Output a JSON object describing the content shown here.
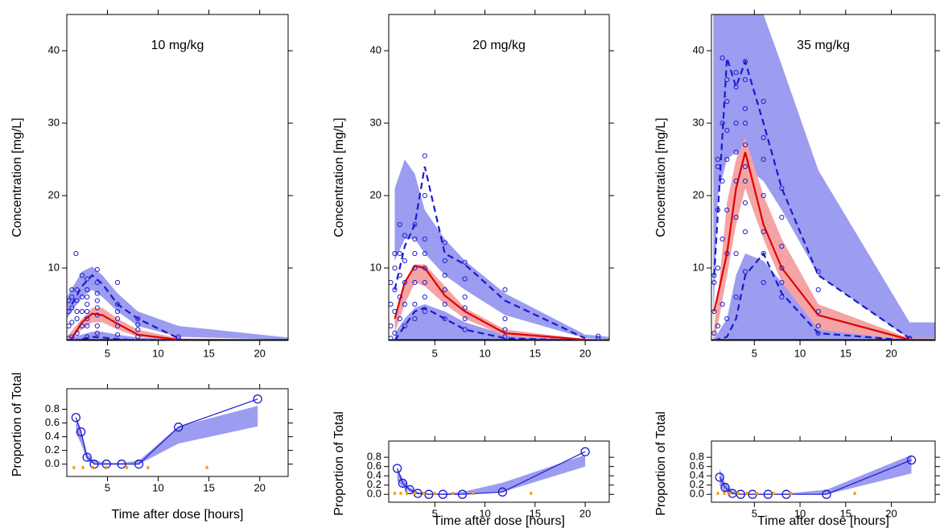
{
  "chart_data": [
    {
      "type": "vpc",
      "title": "10 mg/kg",
      "ylabel": "Concentration [mg/L]",
      "xlim": [
        1,
        22.8
      ],
      "xticks": [
        5,
        10,
        15,
        20
      ],
      "ylim": [
        0,
        45
      ],
      "yticks": [
        10,
        20,
        30,
        40
      ],
      "observed": {
        "color": "#2222cc",
        "x": [
          1.2,
          1.2,
          1.2,
          1.2,
          1.5,
          1.5,
          1.5,
          1.5,
          1.5,
          1.9,
          2,
          2,
          2,
          2,
          2,
          2.5,
          2.5,
          2.5,
          2.5,
          3,
          3,
          3,
          3,
          3,
          3,
          3,
          3,
          4,
          4,
          4,
          4,
          4,
          4,
          4,
          4,
          6,
          6,
          6,
          6,
          6,
          6,
          8,
          8,
          8,
          8,
          12,
          12
        ],
        "y": [
          0.3,
          2,
          4,
          5.5,
          0.5,
          2.5,
          4.5,
          6,
          7,
          12,
          1,
          3,
          4,
          5.5,
          7,
          2,
          4,
          6,
          9,
          0.5,
          2,
          3,
          4,
          5,
          6,
          7,
          8.5,
          1,
          2,
          3.5,
          4.5,
          5.5,
          6.5,
          8,
          9.8,
          0.8,
          2,
          3,
          4,
          5,
          8,
          0.5,
          1.5,
          2.2,
          3,
          0.2,
          0.5
        ]
      },
      "bands": [
        {
          "color": "#9c9cf0",
          "x": [
            1,
            2.5,
            3.5,
            4.5,
            6,
            8,
            12,
            22.8
          ],
          "lo": [
            3,
            6,
            7,
            6,
            4,
            2,
            0.5,
            0.1
          ],
          "hi": [
            6,
            9.5,
            10.2,
            9,
            6.5,
            4,
            2,
            0.4
          ]
        },
        {
          "color": "#9c9cf0",
          "x": [
            1,
            2.5,
            3.5,
            4.5,
            6,
            8,
            12,
            22.8
          ],
          "lo": [
            0,
            0,
            0,
            0,
            0,
            0,
            0,
            0
          ],
          "hi": [
            0.3,
            0.8,
            1.2,
            1.2,
            0.8,
            0.4,
            0.2,
            0.1
          ]
        },
        {
          "color": "#f4a4a4",
          "x": [
            1,
            2.5,
            3.5,
            4.5,
            6,
            8,
            12,
            22.8
          ],
          "lo": [
            0,
            1.5,
            2.5,
            2.5,
            1.5,
            0.5,
            0,
            0
          ],
          "hi": [
            0.5,
            3,
            4.5,
            4.5,
            3,
            1.5,
            0.3,
            0.1
          ]
        }
      ],
      "lines": [
        {
          "color": "#1a1acc",
          "style": "dashed",
          "x": [
            1.5,
            2.5,
            3.5,
            4.5,
            6,
            8,
            12
          ],
          "y": [
            5,
            7.5,
            9,
            7.8,
            5,
            3,
            0.3
          ]
        },
        {
          "color": "#1a1acc",
          "style": "dashed",
          "x": [
            1.5,
            2.5,
            3.5,
            4.5,
            6,
            8,
            12
          ],
          "y": [
            0,
            0.2,
            0.5,
            0.4,
            0.2,
            0,
            0
          ]
        },
        {
          "color": "#e00000",
          "style": "solid",
          "x": [
            1.5,
            2.5,
            3.5,
            4.5,
            6,
            8,
            12
          ],
          "y": [
            0.3,
            2.5,
            3.7,
            3.5,
            2.3,
            0.8,
            0.1
          ]
        }
      ],
      "bottom": {
        "ylabel": "Proportion of Total",
        "xlabel": "Time after dose [hours]",
        "ylim": [
          -0.18,
          1.1
        ],
        "yticks": [
          {
            "value": 0,
            "label": "0.0"
          },
          0.2,
          0.4,
          0.6,
          0.8
        ],
        "color": "#1a1acc",
        "x": [
          1.9,
          2.4,
          3,
          3.7,
          4.9,
          6.4,
          8.1,
          12,
          19.8
        ],
        "values": [
          0.68,
          0.47,
          0.1,
          0,
          0,
          0,
          0,
          0.54,
          0.95
        ],
        "band": {
          "color": "#9c9cf0",
          "lo": [
            0.45,
            0.3,
            0.05,
            0,
            0,
            0,
            0,
            0.3,
            0.55
          ],
          "hi": [
            0.7,
            0.5,
            0.15,
            0.05,
            0.02,
            0.02,
            0.05,
            0.55,
            0.85
          ]
        },
        "rug": {
          "color": "#f0a020",
          "x": [
            1.7,
            2.6,
            3.6,
            4.9,
            6.9,
            9,
            14.8
          ]
        }
      }
    },
    {
      "type": "vpc",
      "title": "20 mg/kg",
      "ylabel": "Concentration [mg/L]",
      "xlim": [
        0.4,
        22.4
      ],
      "xticks": [
        5,
        10,
        15,
        20
      ],
      "ylim": [
        0,
        45
      ],
      "yticks": [
        10,
        20,
        30,
        40
      ],
      "observed": {
        "color": "#2222cc",
        "x": [
          0.6,
          0.6,
          0.6,
          0.6,
          1,
          1,
          1,
          1,
          1,
          1.5,
          1.5,
          1.5,
          1.5,
          1.5,
          2,
          2,
          2,
          2,
          2,
          3,
          3,
          3,
          3,
          3,
          3,
          3,
          4,
          4,
          4,
          4,
          4,
          4,
          4,
          4,
          6,
          6,
          6,
          6,
          6,
          6,
          8,
          8,
          8,
          8,
          8,
          8,
          12,
          12,
          12,
          12,
          21.3,
          21.3
        ],
        "y": [
          0.3,
          2,
          5,
          8,
          1,
          4,
          7,
          10,
          12,
          3,
          6,
          9,
          12,
          16,
          2,
          5,
          8,
          11,
          14.5,
          3,
          5,
          8,
          10,
          12,
          14,
          16,
          4,
          6,
          8,
          10,
          12,
          14,
          20,
          25.5,
          3,
          5,
          7,
          9,
          11,
          13.5,
          1.5,
          3,
          4.5,
          6,
          8.5,
          10.8,
          0.5,
          1.5,
          3,
          7,
          0.3,
          0.6
        ]
      },
      "bands": [
        {
          "color": "#9c9cf0",
          "x": [
            1,
            2,
            3,
            4,
            6,
            8,
            12,
            20,
            22.4
          ],
          "lo": [
            11,
            14,
            14,
            12,
            9,
            7,
            3.5,
            0.3,
            0.2
          ],
          "hi": [
            21,
            25,
            23,
            18,
            14,
            11,
            6.5,
            0.8,
            0.5
          ]
        },
        {
          "color": "#9c9cf0",
          "x": [
            1,
            2,
            3,
            4,
            6,
            8,
            12,
            20,
            22.4
          ],
          "lo": [
            0,
            0,
            0,
            0,
            0,
            0,
            0,
            0,
            0
          ],
          "hi": [
            1,
            3,
            4.5,
            5,
            4,
            2.5,
            0.8,
            0.1,
            0.1
          ]
        },
        {
          "color": "#f4a4a4",
          "x": [
            1,
            2,
            3,
            4,
            6,
            8,
            12,
            20,
            22.4
          ],
          "lo": [
            1,
            5,
            8,
            7.5,
            5,
            3,
            0.6,
            0,
            0
          ],
          "hi": [
            3,
            8,
            10.5,
            10.5,
            7.5,
            4.5,
            1.5,
            0.2,
            0.1
          ]
        }
      ],
      "lines": [
        {
          "color": "#1a1acc",
          "style": "dashed",
          "x": [
            1,
            2,
            3,
            4,
            6,
            8,
            12,
            20
          ],
          "y": [
            7,
            13,
            16,
            24,
            12,
            10.5,
            5.5,
            0.3
          ]
        },
        {
          "color": "#1a1acc",
          "style": "dashed",
          "x": [
            1,
            2,
            3,
            4,
            6,
            8,
            12,
            20
          ],
          "y": [
            0,
            2,
            4,
            4.5,
            3,
            1.5,
            0.3,
            0
          ]
        },
        {
          "color": "#e00000",
          "style": "solid",
          "x": [
            1,
            2,
            3,
            4,
            6,
            8,
            12,
            20
          ],
          "y": [
            3,
            8,
            10.3,
            10,
            6.2,
            4,
            1,
            0.1
          ]
        }
      ],
      "bottom": {
        "ylabel": "Proportion of Total",
        "xlabel": "Time after dose [hours]",
        "ylim": [
          -0.17,
          1.15
        ],
        "yticks": [
          {
            "value": 0,
            "label": "0.0"
          },
          0.2,
          0.4,
          0.6,
          0.8
        ],
        "color": "#1a1acc",
        "x": [
          1.25,
          1.8,
          2.5,
          3.3,
          4.4,
          5.8,
          7.75,
          11.75,
          20
        ],
        "values": [
          0.56,
          0.24,
          0.1,
          0.02,
          0,
          0,
          0,
          0.05,
          0.92
        ],
        "band": {
          "color": "#9c9cf0",
          "lo": [
            0.3,
            0.15,
            0.05,
            0,
            0,
            0,
            0,
            0.05,
            0.6
          ],
          "hi": [
            0.55,
            0.35,
            0.15,
            0.05,
            0.02,
            0.02,
            0.05,
            0.25,
            0.85
          ]
        },
        "rug": {
          "color": "#f0a020",
          "x": [
            1,
            1.6,
            2.2,
            3,
            3.9,
            5,
            6.8,
            8.8,
            14.6
          ]
        }
      }
    },
    {
      "type": "vpc",
      "title": "35 mg/kg",
      "ylabel": "Concentration [mg/L]",
      "xlim": [
        0.3,
        24.8
      ],
      "xticks": [
        5,
        10,
        15,
        20
      ],
      "ylim": [
        0,
        45
      ],
      "yticks": [
        10,
        20,
        30,
        40
      ],
      "observed": {
        "color": "#2222cc",
        "x": [
          0.6,
          0.6,
          0.6,
          0.6,
          1,
          1,
          1,
          1,
          1,
          1.5,
          1.5,
          1.5,
          1.5,
          1.5,
          2,
          2,
          2,
          2,
          2,
          2,
          2,
          3,
          3,
          3,
          3,
          3,
          3,
          3,
          3,
          4,
          4,
          4,
          4,
          4,
          4,
          4,
          4,
          4,
          4,
          6,
          6,
          6,
          6,
          6,
          6,
          6,
          8,
          8,
          8,
          8,
          8,
          8,
          12,
          12,
          12,
          12,
          12,
          22,
          22
        ],
        "y": [
          1,
          4,
          8,
          9,
          2,
          10,
          18,
          24,
          25,
          5,
          14,
          22,
          30,
          39,
          3,
          12,
          18,
          25,
          29,
          33,
          36,
          6,
          12,
          17,
          22,
          26,
          30,
          35,
          37,
          9.5,
          15,
          19,
          22,
          24,
          27,
          30,
          32,
          36,
          38.5,
          8,
          12,
          15,
          20,
          25,
          28,
          33,
          6,
          8,
          10,
          13,
          17,
          21,
          1,
          2,
          4,
          7,
          9.5,
          0.2,
          0.3
        ]
      },
      "bands": [
        {
          "color": "#9c9cf0",
          "x": [
            0.5,
            1,
            2,
            3,
            4,
            6,
            8,
            12,
            22,
            24.8
          ],
          "lo": [
            2,
            20,
            25,
            26,
            24,
            22,
            18,
            9,
            0.2,
            0.2
          ],
          "hi": [
            45,
            45,
            45,
            45,
            45,
            45,
            38,
            23.5,
            2.5,
            2.5
          ]
        },
        {
          "color": "#9c9cf0",
          "x": [
            0.5,
            1,
            2,
            3,
            4,
            6,
            8,
            12,
            22,
            24.8
          ],
          "lo": [
            0,
            0,
            0,
            0,
            0,
            0,
            0,
            0,
            0,
            0
          ],
          "hi": [
            0.2,
            1,
            3,
            9,
            12,
            11,
            8,
            3,
            0.1,
            0.1
          ]
        },
        {
          "color": "#f4a4a4",
          "x": [
            0.5,
            1,
            2,
            3,
            4,
            6,
            8,
            12,
            22,
            24.8
          ],
          "lo": [
            0,
            2,
            9,
            16,
            21,
            14,
            8,
            1.5,
            0,
            0
          ],
          "hi": [
            1,
            6,
            19,
            25,
            28,
            20,
            14,
            5,
            0.3,
            0.3
          ]
        }
      ],
      "lines": [
        {
          "color": "#1a1acc",
          "style": "dashed",
          "x": [
            0.6,
            2,
            3,
            4,
            6,
            8,
            12,
            22
          ],
          "y": [
            9,
            39,
            35,
            38.5,
            30,
            21,
            9,
            0.3
          ]
        },
        {
          "color": "#1a1acc",
          "style": "dashed",
          "x": [
            0.6,
            2,
            3,
            4,
            6,
            8,
            12,
            22
          ],
          "y": [
            0,
            0.5,
            3,
            9,
            12,
            6.5,
            1,
            0
          ]
        },
        {
          "color": "#e00000",
          "style": "solid",
          "x": [
            0.6,
            2,
            3,
            4,
            6,
            8,
            12,
            22
          ],
          "y": [
            4,
            12,
            21,
            26,
            16,
            10,
            3.5,
            0.1
          ]
        }
      ],
      "bottom": {
        "ylabel": "Proportion of Total",
        "xlabel": "Time after dose [hours]",
        "ylim": [
          -0.17,
          1.15
        ],
        "yticks": [
          {
            "value": 0,
            "label": "0.0"
          },
          0.2,
          0.4,
          0.6,
          0.8
        ],
        "color": "#1a1acc",
        "x": [
          1.2,
          1.8,
          2.6,
          3.5,
          4.8,
          6.5,
          8.5,
          12.9,
          22.2
        ],
        "values": [
          0.37,
          0.15,
          0.02,
          0,
          0,
          0,
          0,
          0,
          0.74
        ],
        "band": {
          "color": "#9c9cf0",
          "lo": [
            0.2,
            0.05,
            0,
            0,
            0,
            0,
            0,
            0,
            0.45
          ],
          "hi": [
            0.55,
            0.25,
            0.08,
            0.02,
            0.02,
            0.02,
            0.02,
            0.1,
            0.85
          ]
        },
        "rug": {
          "color": "#f0a020",
          "x": [
            1,
            1.7,
            2.3,
            3.2,
            4.2,
            5.3,
            7.1,
            9,
            16
          ]
        }
      }
    }
  ]
}
